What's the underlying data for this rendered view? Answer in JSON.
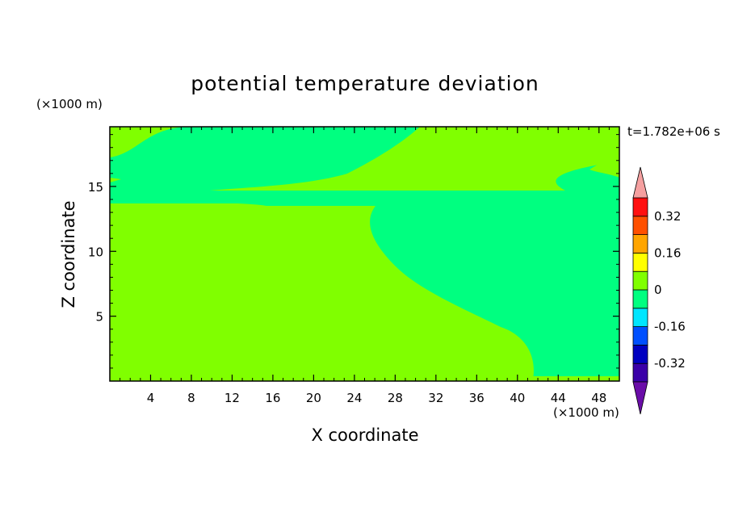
{
  "chart_data": {
    "type": "heatmap",
    "title": "potential temperature deviation",
    "xlabel": "X coordinate",
    "ylabel": "Z coordinate",
    "x_unit": "(×1000 m)",
    "y_unit": "(×1000 m)",
    "time_label": "t=1.782e+06 s",
    "xlim": [
      0,
      50
    ],
    "ylim": [
      0,
      19.6
    ],
    "x_ticks": [
      4,
      8,
      12,
      16,
      20,
      24,
      28,
      32,
      36,
      40,
      44,
      48
    ],
    "y_ticks": [
      5,
      10,
      15
    ],
    "x_tick_labels": [
      "4",
      "8",
      "12",
      "16",
      "20",
      "24",
      "28",
      "32",
      "36",
      "40",
      "44",
      "48"
    ],
    "y_tick_labels": [
      "5",
      "10",
      "15"
    ],
    "colorbar": {
      "levels": [
        -0.4,
        -0.32,
        -0.24,
        -0.16,
        -0.08,
        0,
        0.08,
        0.16,
        0.24,
        0.32,
        0.4
      ],
      "colors": [
        "#3a00a8",
        "#0000c0",
        "#0050ff",
        "#00e6ff",
        "#00ff80",
        "#80ff00",
        "#ffff00",
        "#ffa500",
        "#ff5000",
        "#ff1010"
      ],
      "under_color": "#6a0da8",
      "over_color": "#f5a0a0",
      "labels": [
        "0.32",
        "0.16",
        "0",
        "-0.16",
        "-0.32"
      ],
      "label_values": [
        0.32,
        0.16,
        0,
        -0.16,
        -0.32
      ]
    },
    "regions": {
      "background_class": "0 to 0.08",
      "background_color": "#80ff00",
      "patch_class": "-0.08 to 0",
      "patch_color": "#00ff80"
    }
  }
}
